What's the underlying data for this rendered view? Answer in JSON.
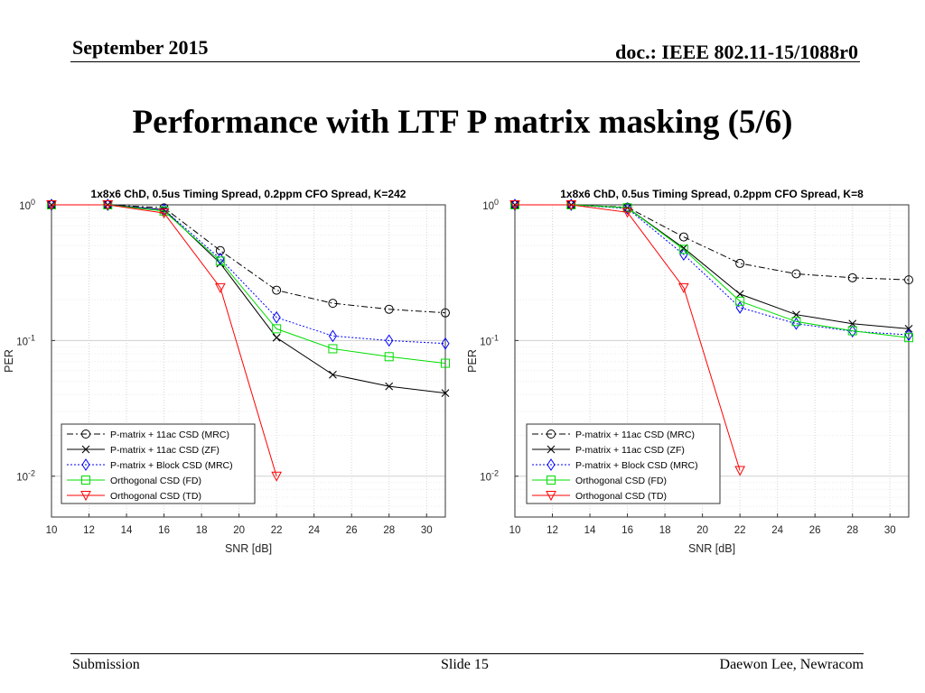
{
  "header": {
    "date": "September 2015",
    "doc": "doc.: IEEE 802.11-15/1088r0"
  },
  "slide_title": "Performance with LTF P matrix masking (5/6)",
  "footer": {
    "left": "Submission",
    "center": "Slide 15",
    "right": "Daewon Lee, Newracom"
  },
  "colors": {
    "black": "#000000",
    "blue": "#0000ff",
    "green": "#00dd00",
    "red": "#ff0000",
    "grid": "#d9d9d9"
  },
  "chart_data": [
    {
      "type": "line",
      "title": "1x8x6 ChD, 0.5us Timing Spread, 0.2ppm CFO Spread, K=242",
      "xlabel": "SNR [dB]",
      "ylabel": "PER",
      "yscale": "log",
      "xlim": [
        10,
        31
      ],
      "ylim": [
        0.005,
        1
      ],
      "xticks": [
        "10",
        "12",
        "14",
        "16",
        "18",
        "20",
        "22",
        "24",
        "26",
        "28",
        "30"
      ],
      "yticks": [
        {
          "value": 1,
          "base": "10",
          "exp": "0"
        },
        {
          "value": 0.1,
          "base": "10",
          "exp": "-1"
        },
        {
          "value": 0.01,
          "base": "10",
          "exp": "-2"
        }
      ],
      "grid": true,
      "legend_position": "bottom-left",
      "series": [
        {
          "name": "P-matrix + 11ac CSD (MRC)",
          "color": "#000000",
          "dash": "dashdot",
          "marker": "circle",
          "x": [
            10,
            13,
            16,
            19,
            22,
            25,
            28,
            31
          ],
          "y": [
            1,
            1,
            0.95,
            0.46,
            0.235,
            0.188,
            0.17,
            0.16
          ]
        },
        {
          "name": "P-matrix + 11ac CSD (ZF)",
          "color": "#000000",
          "dash": "solid",
          "marker": "x",
          "x": [
            10,
            13,
            16,
            19,
            22,
            25,
            28,
            31
          ],
          "y": [
            1,
            1,
            0.92,
            0.37,
            0.105,
            0.056,
            0.046,
            0.041
          ]
        },
        {
          "name": "P-matrix + Block CSD (MRC)",
          "color": "#0000ff",
          "dash": "dotted",
          "marker": "diamond",
          "x": [
            10,
            13,
            16,
            19,
            22,
            25,
            28,
            31
          ],
          "y": [
            1,
            1,
            0.92,
            0.4,
            0.148,
            0.108,
            0.1,
            0.095
          ]
        },
        {
          "name": "Orthogonal CSD (FD)",
          "color": "#00dd00",
          "dash": "solid",
          "marker": "square",
          "x": [
            10,
            13,
            16,
            19,
            22,
            25,
            28,
            31
          ],
          "y": [
            1,
            1,
            0.9,
            0.385,
            0.122,
            0.087,
            0.076,
            0.068
          ]
        },
        {
          "name": "Orthogonal CSD (TD)",
          "color": "#ff0000",
          "dash": "solid",
          "marker": "triangle",
          "x": [
            10,
            13,
            16,
            19,
            22
          ],
          "y": [
            1,
            1,
            0.87,
            0.245,
            0.01
          ]
        }
      ]
    },
    {
      "type": "line",
      "title": "1x8x6 ChD, 0.5us Timing Spread, 0.2ppm CFO Spread, K=8",
      "xlabel": "SNR [dB]",
      "ylabel": "PER",
      "yscale": "log",
      "xlim": [
        10,
        31
      ],
      "ylim": [
        0.005,
        1
      ],
      "xticks": [
        "10",
        "12",
        "14",
        "16",
        "18",
        "20",
        "22",
        "24",
        "26",
        "28",
        "30"
      ],
      "yticks": [
        {
          "value": 1,
          "base": "10",
          "exp": "0"
        },
        {
          "value": 0.1,
          "base": "10",
          "exp": "-1"
        },
        {
          "value": 0.01,
          "base": "10",
          "exp": "-2"
        }
      ],
      "grid": true,
      "legend_position": "bottom-left",
      "series": [
        {
          "name": "P-matrix + 11ac CSD (MRC)",
          "color": "#000000",
          "dash": "dashdot",
          "marker": "circle",
          "x": [
            10,
            13,
            16,
            19,
            22,
            25,
            28,
            31
          ],
          "y": [
            1,
            1,
            0.96,
            0.58,
            0.37,
            0.31,
            0.29,
            0.28
          ]
        },
        {
          "name": "P-matrix + 11ac CSD (ZF)",
          "color": "#000000",
          "dash": "solid",
          "marker": "x",
          "x": [
            10,
            13,
            16,
            19,
            22,
            25,
            28,
            31
          ],
          "y": [
            1,
            1,
            0.95,
            0.48,
            0.22,
            0.155,
            0.133,
            0.122
          ]
        },
        {
          "name": "P-matrix + Block CSD (MRC)",
          "color": "#0000ff",
          "dash": "dotted",
          "marker": "diamond",
          "x": [
            10,
            13,
            16,
            19,
            22,
            25,
            28,
            31
          ],
          "y": [
            1,
            1,
            0.94,
            0.43,
            0.175,
            0.133,
            0.117,
            0.11
          ]
        },
        {
          "name": "Orthogonal CSD (FD)",
          "color": "#00dd00",
          "dash": "solid",
          "marker": "square",
          "x": [
            10,
            13,
            16,
            19,
            22,
            25,
            28,
            31
          ],
          "y": [
            1,
            1,
            0.95,
            0.47,
            0.195,
            0.138,
            0.118,
            0.105
          ]
        },
        {
          "name": "Orthogonal CSD (TD)",
          "color": "#ff0000",
          "dash": "solid",
          "marker": "triangle",
          "x": [
            10,
            13,
            16,
            19,
            22
          ],
          "y": [
            1,
            1,
            0.88,
            0.245,
            0.011
          ]
        }
      ]
    }
  ]
}
